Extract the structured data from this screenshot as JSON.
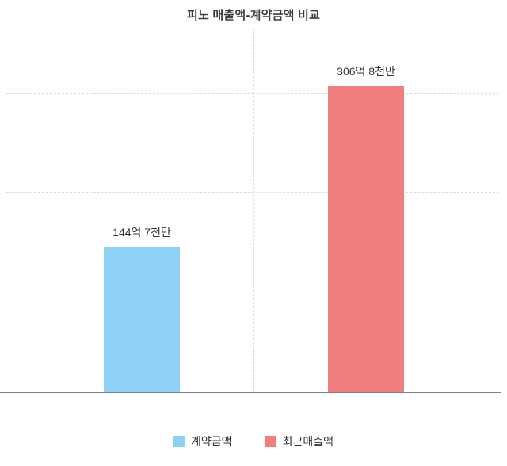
{
  "chart_data": {
    "type": "bar",
    "title": "피노 매출액-계약금액 비교",
    "categories": [
      "계약금액",
      "최근매출액"
    ],
    "values": [
      144.7,
      306.8
    ],
    "value_labels": [
      "144억 7천만",
      "306억 8천만"
    ],
    "unit": "억",
    "xlabel": "",
    "ylabel": "",
    "ylim": [
      0,
      365
    ],
    "gridline_values": [
      100,
      200,
      300
    ],
    "grid": "horizontal-dashed",
    "legend_position": "bottom",
    "legend": [
      {
        "label": "계약금액",
        "color": "#8dd2f6"
      },
      {
        "label": "최근매출액",
        "color": "#f07e7e"
      }
    ],
    "colors": {
      "bar_contract": "#8dd2f6",
      "bar_revenue": "#f07e7e",
      "axis": "#7f7f7f",
      "grid": "#dcdcdc",
      "text": "#333333"
    }
  }
}
